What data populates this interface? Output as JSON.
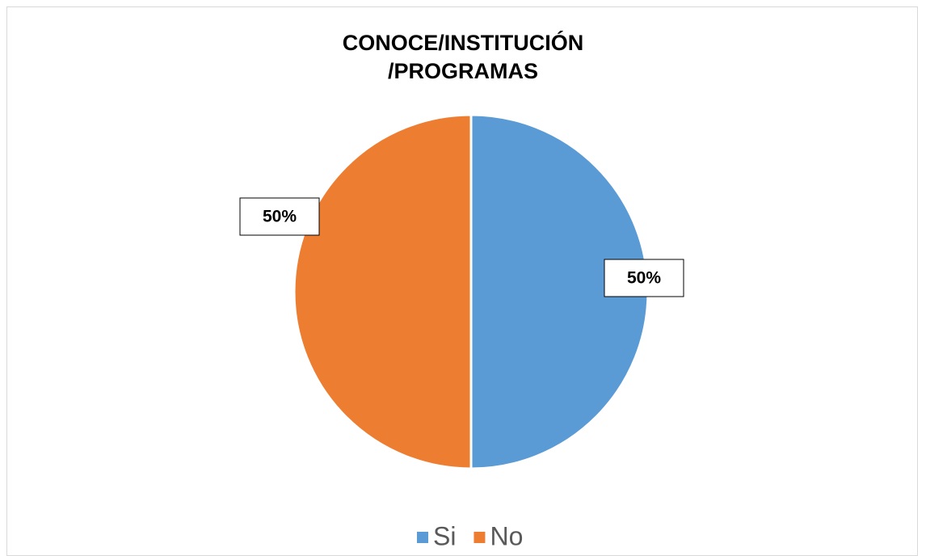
{
  "chart_data": {
    "type": "pie",
    "title": "CONOCE/INSTITUCIÓN /PROGRAMAS",
    "categories": [
      "Si",
      "No"
    ],
    "values": [
      50,
      50
    ],
    "value_labels": [
      "50%",
      "50%"
    ],
    "colors": [
      "#5b9bd5",
      "#ed7d31"
    ],
    "legend": "bottom"
  }
}
